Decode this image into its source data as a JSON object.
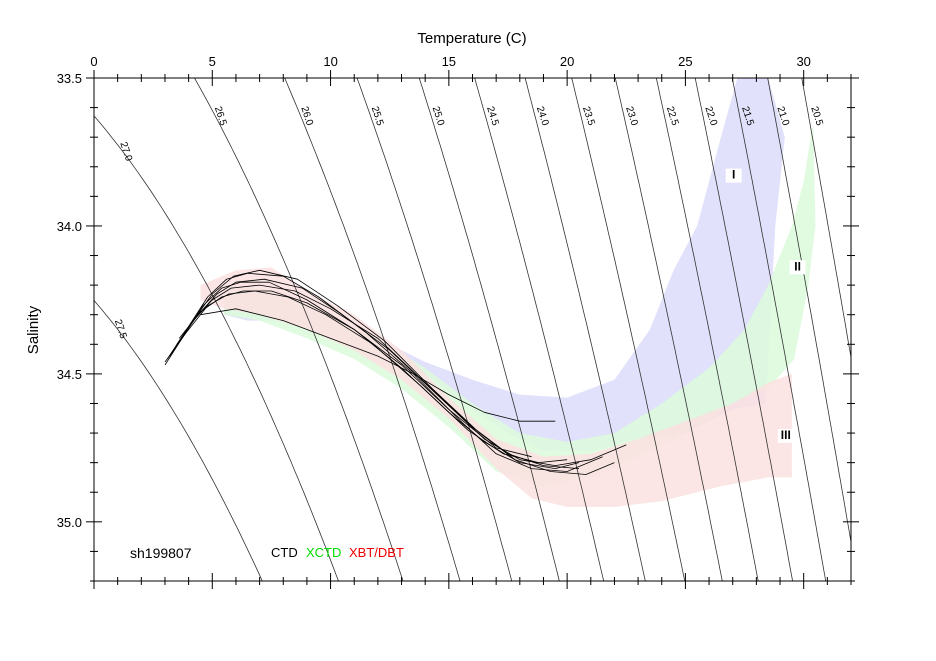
{
  "chart_data": {
    "type": "scatter",
    "title": "",
    "xlabel": "Temperature (C)",
    "ylabel": "Salinity",
    "xlim": [
      0,
      32
    ],
    "ylim": [
      33.5,
      35.2
    ],
    "y_inverted": true,
    "x_axis_position": "top",
    "x_ticks": [
      0,
      5,
      10,
      15,
      20,
      25,
      30
    ],
    "x_tick_labels": [
      "0",
      "5",
      "10",
      "15",
      "20",
      "25",
      "30"
    ],
    "y_ticks": [
      33.5,
      34.0,
      34.5,
      35.0
    ],
    "y_tick_labels": [
      "33.5",
      "34.0",
      "34.5",
      "35.0"
    ],
    "grid": false,
    "station": "sh199807",
    "legend": [
      {
        "label": "CTD",
        "color": "#000000"
      },
      {
        "label": "XCTD",
        "color": "#00dd00"
      },
      {
        "label": "XBT/DBT",
        "color": "#ee0000"
      }
    ],
    "isopycnals": [
      {
        "label": "27.5",
        "sigma": 27.5
      },
      {
        "label": "27.0",
        "sigma": 27.0
      },
      {
        "label": "26.5",
        "sigma": 26.5
      },
      {
        "label": "26.0",
        "sigma": 26.0
      },
      {
        "label": "25.5",
        "sigma": 25.5
      },
      {
        "label": "25.0",
        "sigma": 25.0
      },
      {
        "label": "24.5",
        "sigma": 24.5
      },
      {
        "label": "24.0",
        "sigma": 24.0
      },
      {
        "label": "23.5",
        "sigma": 23.5
      },
      {
        "label": "23.0",
        "sigma": 23.0
      },
      {
        "label": "22.5",
        "sigma": 22.5
      },
      {
        "label": "22.0",
        "sigma": 22.0
      },
      {
        "label": "21.5",
        "sigma": 21.5
      },
      {
        "label": "21.0",
        "sigma": 21.0
      },
      {
        "label": "20.5",
        "sigma": 20.5
      }
    ],
    "envelopes": [
      {
        "label": "I",
        "color": "#dcdcfa",
        "label_at": [
          27,
          33.84
        ],
        "upper": [
          [
            5.5,
            34.2
          ],
          [
            8,
            34.22
          ],
          [
            10,
            34.3
          ],
          [
            12,
            34.38
          ],
          [
            14,
            34.46
          ],
          [
            16,
            34.52
          ],
          [
            18,
            34.57
          ],
          [
            20,
            34.58
          ],
          [
            22,
            34.52
          ],
          [
            23.5,
            34.35
          ],
          [
            24.5,
            34.15
          ],
          [
            25.5,
            34.0
          ],
          [
            26.5,
            33.7
          ],
          [
            27.2,
            33.5
          ],
          [
            28.5,
            33.5
          ],
          [
            29.2,
            33.7
          ],
          [
            28.8,
            34.0
          ]
        ],
        "lower": [
          [
            28.4,
            34.6
          ],
          [
            27,
            34.62
          ],
          [
            25,
            34.7
          ],
          [
            23,
            34.72
          ],
          [
            21,
            34.76
          ],
          [
            19,
            34.76
          ],
          [
            17.5,
            34.7
          ],
          [
            16,
            34.62
          ],
          [
            14,
            34.5
          ],
          [
            12,
            34.45
          ],
          [
            10,
            34.37
          ],
          [
            8,
            34.32
          ],
          [
            6.5,
            34.32
          ],
          [
            5.5,
            34.3
          ]
        ]
      },
      {
        "label": "II",
        "color": "#dcfadc",
        "label_at": [
          29.7,
          34.15
        ],
        "upper": [
          [
            5.5,
            34.2
          ],
          [
            8,
            34.22
          ],
          [
            10,
            34.3
          ],
          [
            12,
            34.38
          ],
          [
            14,
            34.48
          ],
          [
            16,
            34.6
          ],
          [
            18,
            34.7
          ],
          [
            20,
            34.73
          ],
          [
            22,
            34.7
          ],
          [
            24,
            34.6
          ],
          [
            26,
            34.48
          ],
          [
            27.5,
            34.35
          ],
          [
            28.5,
            34.2
          ],
          [
            29.5,
            34.0
          ],
          [
            30,
            33.85
          ],
          [
            30.4,
            33.65
          ]
        ],
        "lower": [
          [
            30.5,
            34.0
          ],
          [
            30.2,
            34.2
          ],
          [
            29.6,
            34.45
          ],
          [
            28.5,
            34.55
          ],
          [
            27,
            34.6
          ],
          [
            25,
            34.7
          ],
          [
            23,
            34.78
          ],
          [
            21,
            34.85
          ],
          [
            19,
            34.88
          ],
          [
            17,
            34.83
          ],
          [
            15,
            34.68
          ],
          [
            13,
            34.55
          ],
          [
            11,
            34.45
          ],
          [
            9,
            34.38
          ],
          [
            7,
            34.32
          ],
          [
            5.5,
            34.3
          ]
        ]
      },
      {
        "label": "III",
        "color": "#fce1e1",
        "label_at": [
          29.2,
          34.72
        ],
        "upper": [
          [
            4.5,
            34.2
          ],
          [
            6,
            34.15
          ],
          [
            7.5,
            34.14
          ],
          [
            9,
            34.22
          ],
          [
            11,
            34.3
          ],
          [
            13,
            34.42
          ],
          [
            15,
            34.58
          ],
          [
            17,
            34.72
          ],
          [
            19,
            34.78
          ],
          [
            21,
            34.77
          ],
          [
            23,
            34.72
          ],
          [
            25,
            34.66
          ],
          [
            27,
            34.6
          ],
          [
            28.5,
            34.53
          ],
          [
            29.5,
            34.5
          ]
        ],
        "lower": [
          [
            29.5,
            34.85
          ],
          [
            28.5,
            34.85
          ],
          [
            26.5,
            34.88
          ],
          [
            24,
            34.93
          ],
          [
            22,
            34.95
          ],
          [
            20,
            34.95
          ],
          [
            18.5,
            34.92
          ],
          [
            17,
            34.82
          ],
          [
            15,
            34.65
          ],
          [
            13,
            34.52
          ],
          [
            11,
            34.42
          ],
          [
            9,
            34.35
          ],
          [
            7,
            34.3
          ],
          [
            5.5,
            34.28
          ],
          [
            4.5,
            34.25
          ]
        ]
      }
    ],
    "series": [
      {
        "name": "CTD",
        "x": [
          3.0,
          3.8,
          4.6,
          5.4,
          6.2,
          7.4,
          9.0,
          11.0,
          13.0,
          15.0,
          16.5,
          18.0,
          19.5,
          20.5
        ],
        "y": [
          34.47,
          34.37,
          34.27,
          34.21,
          34.19,
          34.19,
          34.25,
          34.35,
          34.48,
          34.63,
          34.73,
          34.8,
          34.82,
          34.8
        ]
      },
      {
        "name": "CTD",
        "x": [
          3.1,
          4.0,
          4.8,
          5.6,
          6.5,
          8.0,
          9.5,
          11.5,
          13.5,
          15.5,
          17.0,
          18.5,
          20.0,
          21.5
        ],
        "y": [
          34.45,
          34.34,
          34.24,
          34.18,
          34.16,
          34.17,
          34.24,
          34.36,
          34.5,
          34.66,
          34.77,
          34.82,
          34.83,
          34.78
        ]
      },
      {
        "name": "CTD",
        "x": [
          3.3,
          4.2,
          5.0,
          5.8,
          7.0,
          8.5,
          10.0,
          12.0,
          14.0,
          16.0,
          17.5,
          19.0,
          20.5
        ],
        "y": [
          34.43,
          34.32,
          34.25,
          34.21,
          34.2,
          34.22,
          34.28,
          34.38,
          34.53,
          34.68,
          34.77,
          34.81,
          34.82
        ]
      },
      {
        "name": "CTD",
        "x": [
          3.5,
          4.4,
          5.2,
          6.0,
          7.2,
          8.8,
          10.5,
          12.5,
          14.5,
          16.5,
          18.0,
          19.5,
          21.0,
          22.5
        ],
        "y": [
          34.4,
          34.3,
          34.23,
          34.19,
          34.18,
          34.21,
          34.3,
          34.42,
          34.57,
          34.72,
          34.79,
          34.81,
          34.79,
          34.74
        ]
      },
      {
        "name": "CTD",
        "x": [
          3.0,
          3.9,
          4.8,
          5.7,
          6.8,
          8.2,
          9.8,
          11.8,
          13.8,
          15.8,
          17.3,
          18.8,
          20.0
        ],
        "y": [
          34.46,
          34.36,
          34.27,
          34.23,
          34.22,
          34.24,
          34.3,
          34.4,
          34.54,
          34.69,
          34.77,
          34.8,
          34.79
        ]
      },
      {
        "name": "CTD",
        "x": [
          3.6,
          4.5,
          5.4,
          6.3,
          7.5,
          9.0,
          11.0,
          13.0,
          15.0,
          17.0,
          18.5
        ],
        "y": [
          34.38,
          34.29,
          34.24,
          34.22,
          34.22,
          34.26,
          34.35,
          34.47,
          34.62,
          34.75,
          34.78
        ]
      },
      {
        "name": "CTD",
        "x": [
          3.2,
          4.1,
          5.0,
          5.9,
          7.0,
          8.6,
          10.3,
          12.3,
          14.3,
          16.3,
          17.8,
          19.3,
          20.8,
          22.0
        ],
        "y": [
          34.44,
          34.33,
          34.23,
          34.17,
          34.15,
          34.18,
          34.27,
          34.39,
          34.55,
          34.7,
          34.79,
          34.83,
          34.84,
          34.8
        ]
      },
      {
        "name": "CTD",
        "x": [
          4.5,
          6.0,
          8.0,
          10.0,
          12.0,
          13.5,
          15.0,
          16.5,
          18.0,
          19.5
        ],
        "y": [
          34.3,
          34.28,
          34.32,
          34.38,
          34.44,
          34.5,
          34.57,
          34.63,
          34.66,
          34.66
        ]
      }
    ]
  }
}
